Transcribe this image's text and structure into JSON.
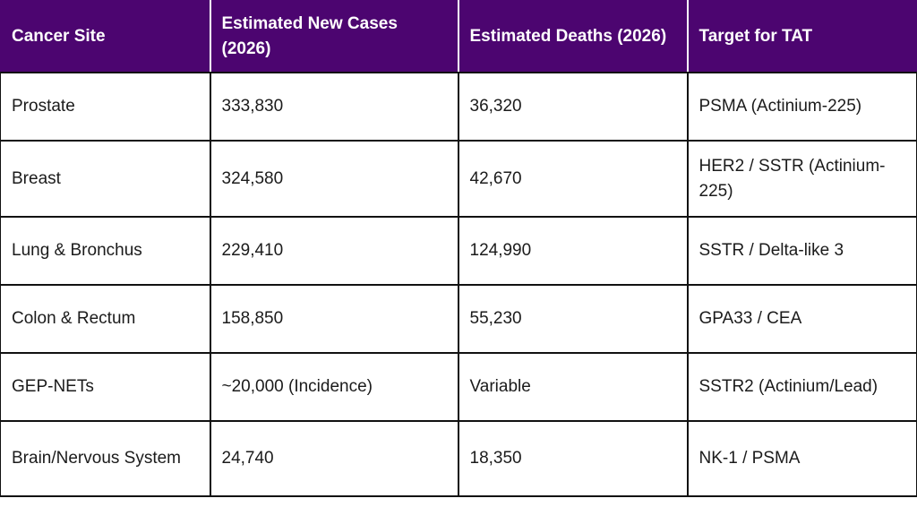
{
  "table": {
    "headers": [
      "Cancer Site",
      "Estimated New Cases (2026)",
      "Estimated Deaths (2026)",
      "Target for TAT"
    ],
    "rows": [
      [
        "Prostate",
        "333,830",
        "36,320",
        "PSMA (Actinium-225)"
      ],
      [
        "Breast",
        "324,580",
        "42,670",
        "HER2 / SSTR (Actinium-225)"
      ],
      [
        "Lung & Bronchus",
        "229,410",
        "124,990",
        "SSTR / Delta-like 3"
      ],
      [
        "Colon & Rectum",
        "158,850",
        "55,230",
        "GPA33 / CEA"
      ],
      [
        "GEP-NETs",
        "~20,000 (Incidence)",
        "Variable",
        "SSTR2 (Actinium/Lead)"
      ],
      [
        "Brain/Nervous System",
        "24,740",
        "18,350",
        "NK-1 / PSMA"
      ]
    ]
  },
  "colors": {
    "header_background": "#4c0570",
    "header_text": "#ffffff",
    "body_text": "#1b1b1b",
    "border": "#111111"
  }
}
